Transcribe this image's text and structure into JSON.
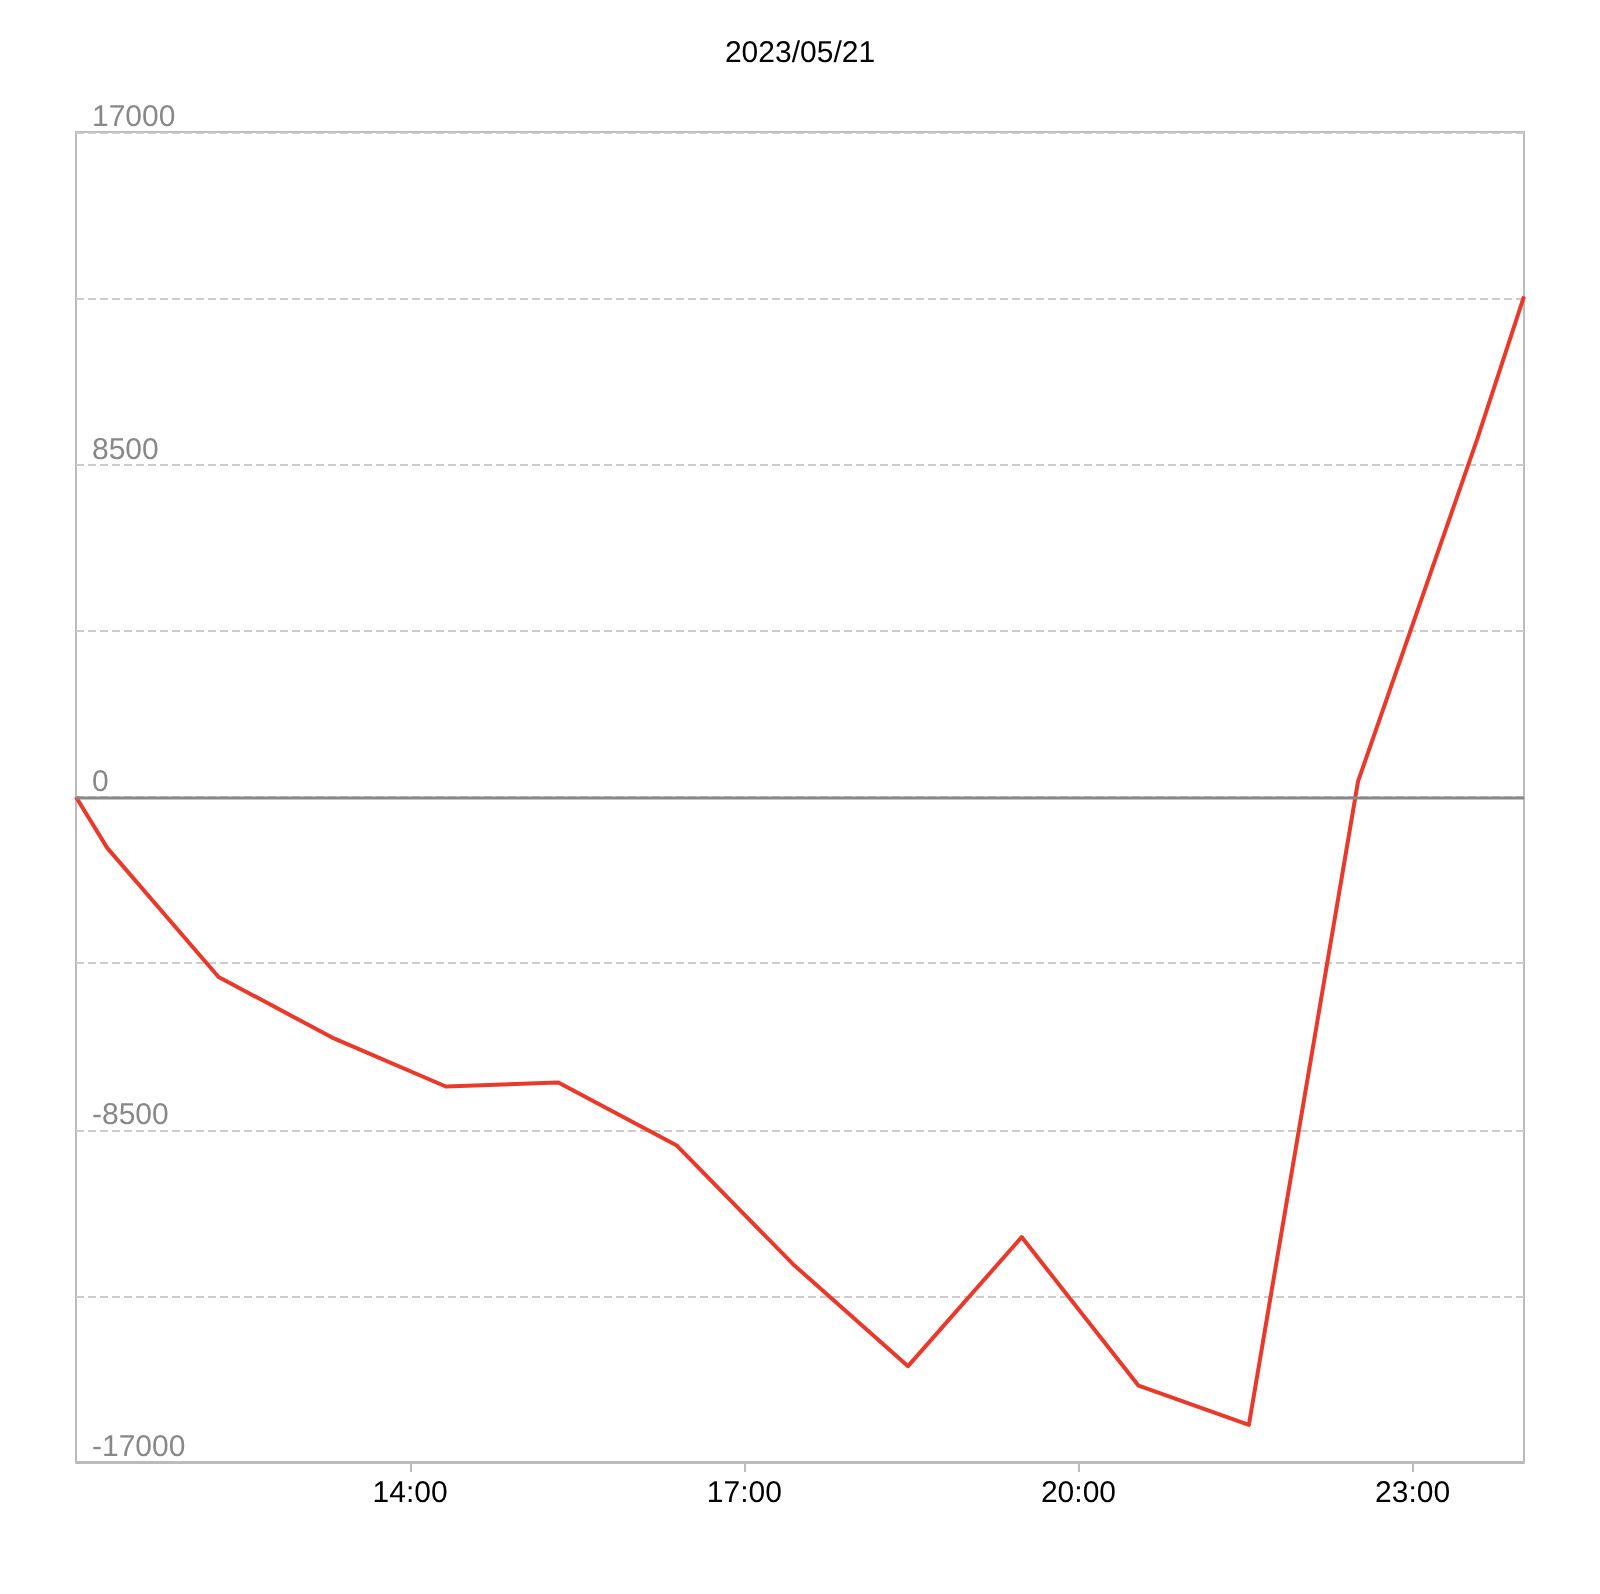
{
  "chart_data": {
    "type": "line",
    "title": "2023/05/21",
    "x": [
      11,
      11.28,
      12.28,
      13.3,
      14.32,
      15.33,
      16.39,
      17.44,
      18.47,
      19.49,
      20.54,
      21.53,
      22.51,
      23.58,
      24
    ],
    "series": [
      {
        "color": "#e8392b",
        "values": [
          0,
          -1300,
          -4600,
          -6150,
          -7400,
          -7300,
          -8900,
          -11950,
          -14550,
          -11250,
          -15050,
          -16050,
          400,
          9150,
          12800
        ]
      }
    ],
    "xlim": [
      11,
      24
    ],
    "xticks": [
      {
        "value": 14,
        "label": "14:00"
      },
      {
        "value": 17,
        "label": "17:00"
      },
      {
        "value": 20,
        "label": "20:00"
      },
      {
        "value": 23,
        "label": "23:00"
      }
    ],
    "ylim": [
      -17000,
      17000
    ],
    "yticks": [
      -17000,
      {
        "value": -12750,
        "label": null
      },
      -8500,
      {
        "value": -4250,
        "label": null
      },
      0,
      {
        "value": 4250,
        "label": null
      },
      8500,
      {
        "value": 12750,
        "label": null
      },
      17000
    ],
    "grid": "y",
    "marker": "none",
    "line_style": "solid",
    "ref_lines": [
      {
        "axis": "y",
        "value": 0,
        "color": "#888888"
      }
    ]
  }
}
